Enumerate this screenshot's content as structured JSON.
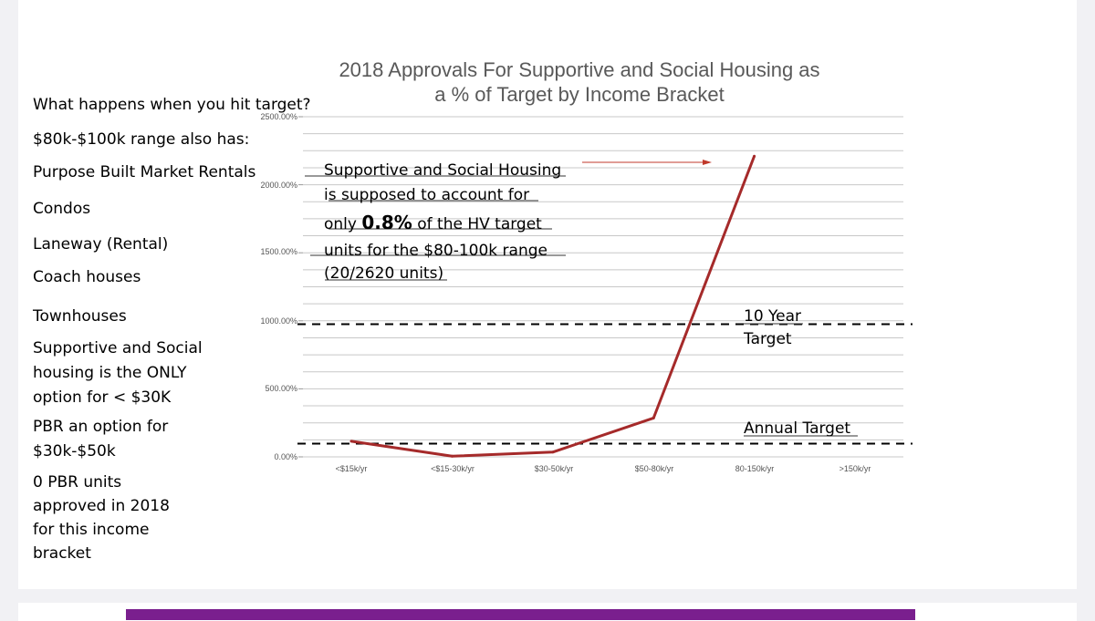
{
  "chart_data": {
    "type": "line",
    "title_lines": [
      "2018 Approvals For Supportive and Social Housing as",
      "a % of Target by Income Bracket"
    ],
    "categories": [
      "<$15k/yr",
      "<$15-30k/yr",
      "$30-50k/yr",
      "$50-80k/yr",
      "80-150k/yr",
      ">150k/yr"
    ],
    "series": [
      {
        "values": [
          115,
          5,
          35,
          285,
          2210,
          null
        ],
        "color": "#a52a2a"
      }
    ],
    "y_ticks": [
      "2500.00%",
      "2000.00%",
      "1500.00%",
      "1000.00%",
      "500.00%",
      "0.00%"
    ],
    "ylim": [
      0,
      2500
    ],
    "grid": true,
    "reference_lines": [
      {
        "label_lines": [
          "10 Year",
          "Target"
        ],
        "value": 975
      },
      {
        "label_lines": [
          "Annual Target"
        ],
        "value": 97.5
      }
    ]
  },
  "sidebar": {
    "question": "What happens when you hit target?",
    "range_intro": "$80k-$100k range also has:",
    "items": [
      "Purpose Built Market Rentals",
      "Condos",
      "Laneway (Rental)",
      "Coach houses",
      "Townhouses"
    ],
    "supportive_lines": [
      "Supportive and Social",
      "housing is the ONLY",
      "option for < $30K"
    ],
    "pbr_lines": [
      "PBR an option for",
      "$30k-$50k"
    ],
    "zero_pbr_lines": [
      "0 PBR units",
      "approved in 2018",
      "for this income",
      "bracket"
    ]
  },
  "note": {
    "line1": "Supportive and Social Housing",
    "line2": "is supposed to account for",
    "line3_prefix": "only ",
    "line3_bold": "0.8%",
    "line3_suffix": " of the HV target",
    "line4": "units for the $80-100k range",
    "line5": "(20/2620 units)",
    "arrow_color": "#c0392b"
  },
  "colors": {
    "purple_bar": "#7a1f8e",
    "line": "#a52a2a"
  }
}
